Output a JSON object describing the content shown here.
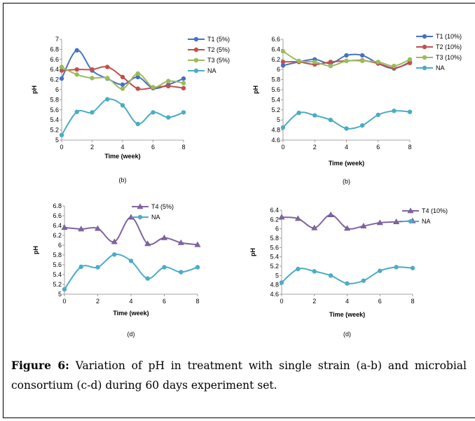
{
  "caption": {
    "label": "Figure 6:",
    "text": " Variation of pH in treatment with single strain (a-b) and microbial consortium (c-d) during 60 days experiment set."
  },
  "chart_data": [
    {
      "type": "line",
      "panel_label": "(b)",
      "xlabel": "Time (week)",
      "ylabel": "pH",
      "x": [
        0,
        1,
        2,
        3,
        4,
        5,
        6,
        7,
        8
      ],
      "xticks": [
        "0",
        "2",
        "4",
        "6",
        "8"
      ],
      "ylim": [
        5,
        7
      ],
      "yticks": [
        "5",
        "5.2",
        "5.4",
        "5.6",
        "5.8",
        "6",
        "6.2",
        "6.4",
        "6.6",
        "6.8",
        "7"
      ],
      "legend_position": "top-right",
      "series": [
        {
          "name": "T1 (5%)",
          "color": "#4472C4",
          "marker": "circle",
          "values": [
            6.22,
            6.78,
            6.38,
            6.22,
            6.1,
            6.25,
            6.03,
            6.1,
            6.22
          ]
        },
        {
          "name": "T2 (5%)",
          "color": "#C0504D",
          "marker": "circle",
          "values": [
            6.38,
            6.4,
            6.4,
            6.45,
            6.25,
            6.02,
            6.04,
            6.07,
            6.03
          ]
        },
        {
          "name": "T3 (5%)",
          "color": "#9BBB59",
          "marker": "circle",
          "values": [
            6.45,
            6.3,
            6.23,
            6.23,
            6.02,
            6.32,
            6.05,
            6.17,
            6.13
          ]
        },
        {
          "name": "NA",
          "color": "#4BACC6",
          "marker": "circle",
          "values": [
            5.1,
            5.56,
            5.55,
            5.81,
            5.69,
            5.32,
            5.55,
            5.45,
            5.55
          ]
        }
      ]
    },
    {
      "type": "line",
      "panel_label": "(b)",
      "xlabel": "Time (week)",
      "ylabel": "pH",
      "x": [
        0,
        1,
        2,
        3,
        4,
        5,
        6,
        7,
        8
      ],
      "xticks": [
        "0",
        "2",
        "4",
        "6",
        "8"
      ],
      "ylim": [
        4.6,
        6.6
      ],
      "yticks": [
        "4.6",
        "4.8",
        "5",
        "5.2",
        "5.4",
        "5.6",
        "5.8",
        "6",
        "6.2",
        "6.4",
        "6.6"
      ],
      "legend_position": "top-right",
      "series": [
        {
          "name": "T1 (10%)",
          "color": "#4472C4",
          "marker": "circle",
          "values": [
            6.08,
            6.15,
            6.2,
            6.12,
            6.28,
            6.28,
            6.12,
            6.02,
            6.15
          ]
        },
        {
          "name": "T2 (10%)",
          "color": "#C0504D",
          "marker": "circle",
          "values": [
            6.15,
            6.15,
            6.1,
            6.15,
            6.17,
            6.18,
            6.12,
            6.03,
            6.13
          ]
        },
        {
          "name": "T3 (10%)",
          "color": "#9BBB59",
          "marker": "circle",
          "values": [
            6.36,
            6.17,
            6.15,
            6.07,
            6.17,
            6.17,
            6.15,
            6.07,
            6.2
          ]
        },
        {
          "name": "NA",
          "color": "#4BACC6",
          "marker": "circle",
          "values": [
            4.85,
            5.14,
            5.09,
            5.0,
            4.83,
            4.89,
            5.1,
            5.18,
            5.16
          ]
        }
      ]
    },
    {
      "type": "line",
      "panel_label": "(d)",
      "xlabel": "Time (week)",
      "ylabel": "pH",
      "x": [
        0,
        1,
        2,
        3,
        4,
        5,
        6,
        7,
        8
      ],
      "xticks": [
        "0",
        "2",
        "4",
        "6",
        "8"
      ],
      "ylim": [
        5,
        6.8
      ],
      "yticks": [
        "5",
        "5.2",
        "5.4",
        "5.6",
        "5.8",
        "6",
        "6.2",
        "6.4",
        "6.6",
        "6.8"
      ],
      "legend_position": "top-right",
      "series": [
        {
          "name": "T4 (5%)",
          "color": "#8064A2",
          "marker": "triangle",
          "values": [
            6.36,
            6.33,
            6.34,
            6.07,
            6.57,
            6.03,
            6.15,
            6.05,
            6.01
          ]
        },
        {
          "name": "NA",
          "color": "#4BACC6",
          "marker": "circle",
          "values": [
            5.1,
            5.56,
            5.55,
            5.81,
            5.68,
            5.32,
            5.55,
            5.45,
            5.55
          ]
        }
      ]
    },
    {
      "type": "line",
      "panel_label": "(d)",
      "xlabel": "Time (week)",
      "ylabel": "pH",
      "x": [
        0,
        1,
        2,
        3,
        4,
        5,
        6,
        7,
        8
      ],
      "xticks": [
        "0",
        "2",
        "4",
        "6",
        "8"
      ],
      "ylim": [
        4.6,
        6.4
      ],
      "yticks": [
        "4.6",
        "4.8",
        "5",
        "5.2",
        "5.4",
        "5.6",
        "5.8",
        "6",
        "6.2",
        "6.4"
      ],
      "legend_position": "top-right",
      "series": [
        {
          "name": "T4 (10%)",
          "color": "#8064A2",
          "marker": "triangle",
          "values": [
            6.25,
            6.22,
            6.02,
            6.3,
            6.01,
            6.06,
            6.13,
            6.15,
            6.17
          ]
        },
        {
          "name": "NA",
          "color": "#4BACC6",
          "marker": "circle",
          "values": [
            4.85,
            5.14,
            5.09,
            5.0,
            4.83,
            4.89,
            5.1,
            5.18,
            5.16
          ]
        }
      ]
    }
  ]
}
